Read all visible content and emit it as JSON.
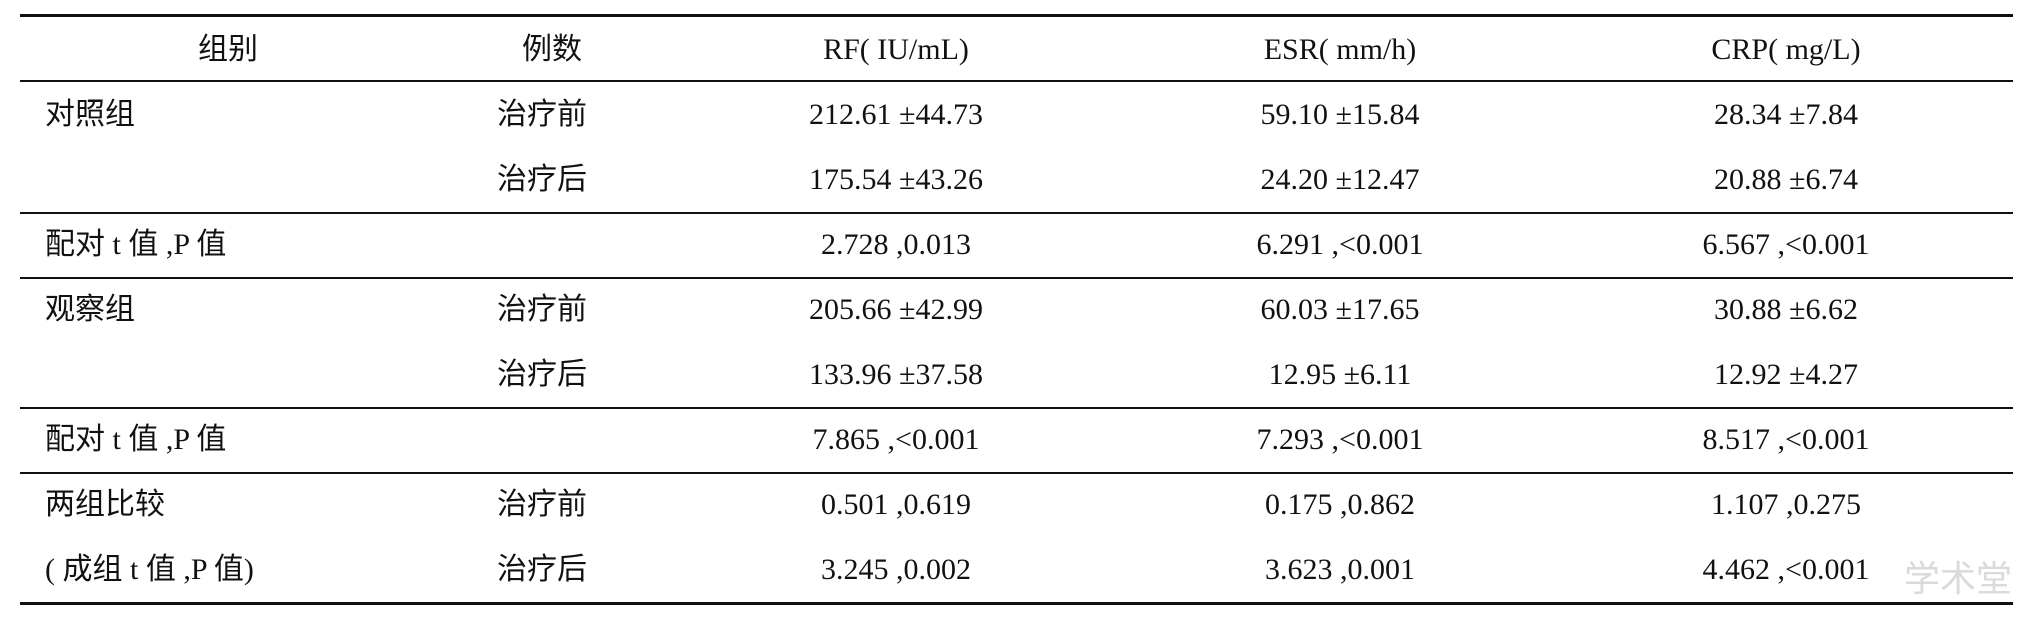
{
  "table": {
    "header": [
      "组别",
      "例数",
      "RF( IU/mL)",
      "ESR( mm/h)",
      "CRP( mg/L)"
    ],
    "rows": [
      [
        "对照组",
        "治疗前",
        "212.61 ±44.73",
        "59.10 ±15.84",
        "28.34 ±7.84"
      ],
      [
        null,
        "治疗后",
        "175.54 ±43.26",
        "24.20 ±12.47",
        "20.88 ±6.74"
      ],
      [
        "配对 t 值 ,P 值",
        null,
        "2.728 ,0.013",
        "6.291 ,<0.001",
        "6.567 ,<0.001"
      ],
      [
        "观察组",
        "治疗前",
        "205.66 ±42.99",
        "60.03 ±17.65",
        "30.88 ±6.62"
      ],
      [
        null,
        "治疗后",
        "133.96 ±37.58",
        "12.95 ±6.11",
        "12.92 ±4.27"
      ],
      [
        "配对 t 值 ,P 值",
        null,
        "7.865 ,<0.001",
        "7.293 ,<0.001",
        "8.517 ,<0.001"
      ],
      [
        "两组比较",
        "治疗前",
        "0.501 ,0.619",
        "0.175 ,0.862",
        "1.107 ,0.275"
      ],
      [
        "( 成组 t 值 ,P 值)",
        "治疗后",
        "3.245 ,0.002",
        "3.623 ,0.001",
        "4.462 ,<0.001"
      ]
    ],
    "watermark": "学术堂"
  }
}
